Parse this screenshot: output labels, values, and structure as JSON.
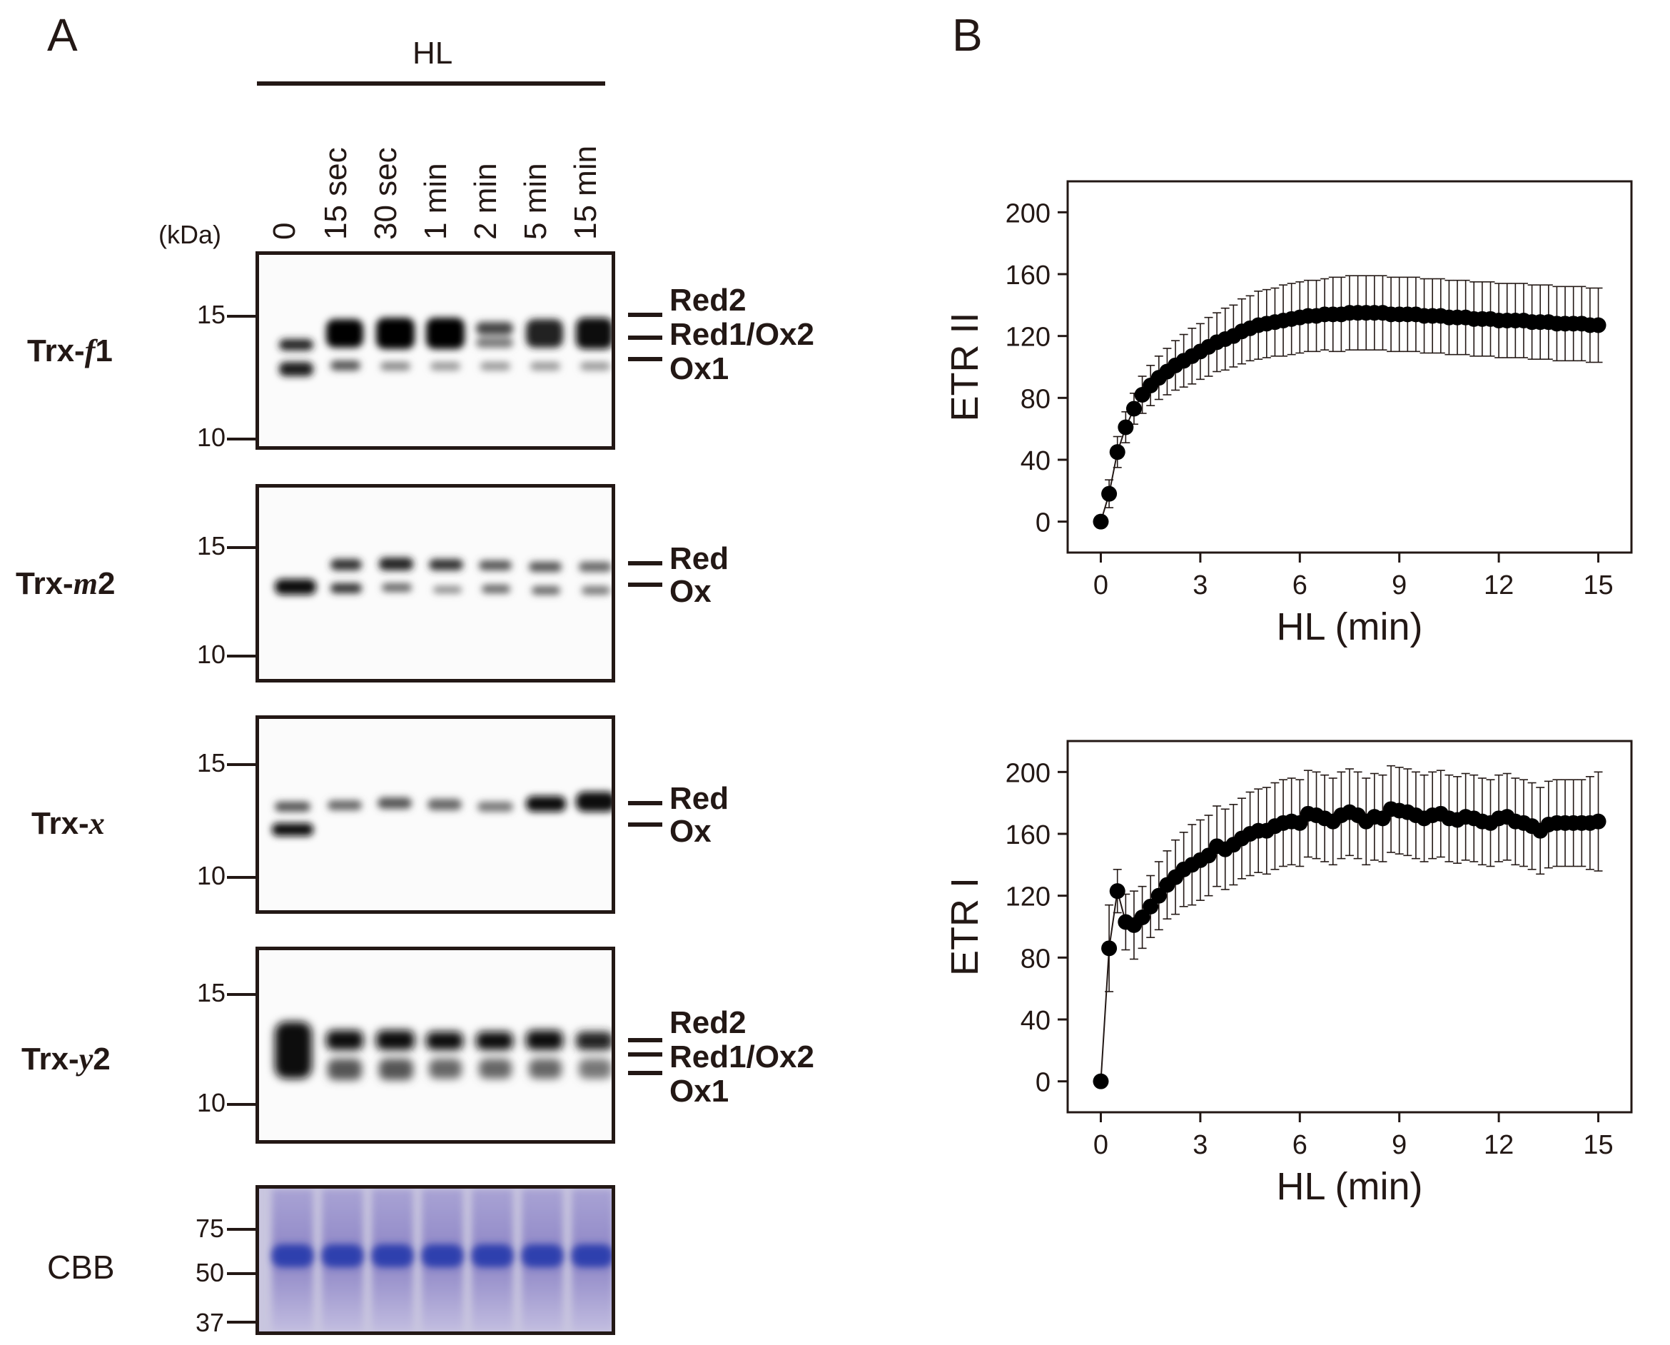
{
  "panel_a": {
    "letter": "A",
    "treatment": "HL",
    "kda_label": "(kDa)",
    "lanes": [
      "0",
      "15 sec",
      "30 sec",
      "1 min",
      "2 min",
      "5 min",
      "15 min"
    ],
    "blots": [
      {
        "protein_prefix": "Trx-",
        "protein_italic": "f",
        "protein_suffix": "1",
        "mw_markers": [
          "15",
          "10"
        ],
        "bands": [
          "Red2",
          "Red1/Ox2",
          "Ox1"
        ]
      },
      {
        "protein_prefix": "Trx-",
        "protein_italic": "m",
        "protein_suffix": "2",
        "mw_markers": [
          "15",
          "10"
        ],
        "bands": [
          "Red",
          "Ox"
        ]
      },
      {
        "protein_prefix": "Trx-",
        "protein_italic": "x",
        "protein_suffix": "",
        "mw_markers": [
          "15",
          "10"
        ],
        "bands": [
          "Red",
          "Ox"
        ]
      },
      {
        "protein_prefix": "Trx-",
        "protein_italic": "y",
        "protein_suffix": "2",
        "mw_markers": [
          "15",
          "10"
        ],
        "bands": [
          "Red2",
          "Red1/Ox2",
          "Ox1"
        ]
      }
    ],
    "cbb": {
      "label": "CBB",
      "mw_markers": [
        "75",
        "50",
        "37"
      ],
      "stain_color": "#2f3fae"
    }
  },
  "panel_b": {
    "letter": "B"
  },
  "chart_data": [
    {
      "type": "line",
      "marker": "circle",
      "error_bars": true,
      "title": "",
      "xlabel": "HL (min)",
      "ylabel": "ETR II",
      "xlim": [
        -1,
        16
      ],
      "ylim": [
        -20,
        220
      ],
      "xticks": [
        0,
        3,
        6,
        9,
        12,
        15
      ],
      "yticks": [
        0,
        40,
        80,
        120,
        160,
        200
      ],
      "x": [
        0,
        0.25,
        0.5,
        0.75,
        1,
        1.25,
        1.5,
        1.75,
        2,
        2.25,
        2.5,
        2.75,
        3,
        3.25,
        3.5,
        3.75,
        4,
        4.25,
        4.5,
        4.75,
        5,
        5.25,
        5.5,
        5.75,
        6,
        6.25,
        6.5,
        6.75,
        7,
        7.25,
        7.5,
        7.75,
        8,
        8.25,
        8.5,
        8.75,
        9,
        9.25,
        9.5,
        9.75,
        10,
        10.25,
        10.5,
        10.75,
        11,
        11.25,
        11.5,
        11.75,
        12,
        12.25,
        12.5,
        12.75,
        13,
        13.25,
        13.5,
        13.75,
        14,
        14.25,
        14.5,
        14.75,
        15
      ],
      "y": [
        0,
        18,
        45,
        61,
        73,
        82,
        88,
        93,
        97,
        101,
        104,
        107,
        110,
        113,
        116,
        118,
        120,
        123,
        125,
        127,
        128,
        129,
        130,
        131,
        132,
        133,
        133,
        134,
        134,
        134,
        135,
        135,
        135,
        135,
        135,
        134,
        134,
        134,
        134,
        133,
        133,
        133,
        132,
        132,
        132,
        131,
        131,
        131,
        130,
        130,
        130,
        130,
        129,
        129,
        129,
        128,
        128,
        128,
        128,
        127,
        127
      ],
      "err": [
        4,
        9,
        10,
        10,
        10,
        12,
        13,
        14,
        15,
        16,
        17,
        18,
        18,
        19,
        19,
        20,
        20,
        21,
        21,
        22,
        22,
        22,
        23,
        23,
        23,
        23,
        23,
        23,
        24,
        24,
        24,
        24,
        24,
        24,
        24,
        24,
        24,
        24,
        24,
        24,
        24,
        24,
        24,
        24,
        24,
        24,
        24,
        24,
        24,
        24,
        24,
        24,
        24,
        24,
        24,
        24,
        24,
        24,
        24,
        24,
        24
      ]
    },
    {
      "type": "line",
      "marker": "circle",
      "error_bars": true,
      "title": "",
      "xlabel": "HL (min)",
      "ylabel": "ETR I",
      "xlim": [
        -1,
        16
      ],
      "ylim": [
        -20,
        220
      ],
      "xticks": [
        0,
        3,
        6,
        9,
        12,
        15
      ],
      "yticks": [
        0,
        40,
        80,
        120,
        160,
        200
      ],
      "x": [
        0,
        0.25,
        0.5,
        0.75,
        1,
        1.25,
        1.5,
        1.75,
        2,
        2.25,
        2.5,
        2.75,
        3,
        3.25,
        3.5,
        3.75,
        4,
        4.25,
        4.5,
        4.75,
        5,
        5.25,
        5.5,
        5.75,
        6,
        6.25,
        6.5,
        6.75,
        7,
        7.25,
        7.5,
        7.75,
        8,
        8.25,
        8.5,
        8.75,
        9,
        9.25,
        9.5,
        9.75,
        10,
        10.25,
        10.5,
        10.75,
        11,
        11.25,
        11.5,
        11.75,
        12,
        12.25,
        12.5,
        12.75,
        13,
        13.25,
        13.5,
        13.75,
        14,
        14.25,
        14.5,
        14.75,
        15
      ],
      "y": [
        0,
        86,
        123,
        103,
        101,
        106,
        113,
        120,
        127,
        132,
        137,
        140,
        143,
        146,
        152,
        150,
        153,
        157,
        160,
        162,
        162,
        165,
        167,
        168,
        167,
        173,
        172,
        170,
        168,
        172,
        174,
        172,
        168,
        171,
        170,
        176,
        175,
        174,
        172,
        170,
        172,
        173,
        170,
        169,
        171,
        170,
        168,
        167,
        170,
        171,
        168,
        167,
        165,
        162,
        166,
        167,
        167,
        167,
        167,
        167,
        168
      ],
      "err": [
        2,
        28,
        14,
        18,
        22,
        20,
        20,
        22,
        22,
        24,
        24,
        26,
        26,
        26,
        26,
        26,
        26,
        26,
        27,
        27,
        28,
        28,
        28,
        28,
        28,
        28,
        28,
        28,
        28,
        28,
        28,
        28,
        28,
        28,
        28,
        28,
        28,
        28,
        28,
        28,
        28,
        28,
        28,
        28,
        28,
        28,
        28,
        28,
        28,
        28,
        28,
        28,
        28,
        28,
        28,
        28,
        28,
        28,
        28,
        30,
        32
      ]
    }
  ]
}
